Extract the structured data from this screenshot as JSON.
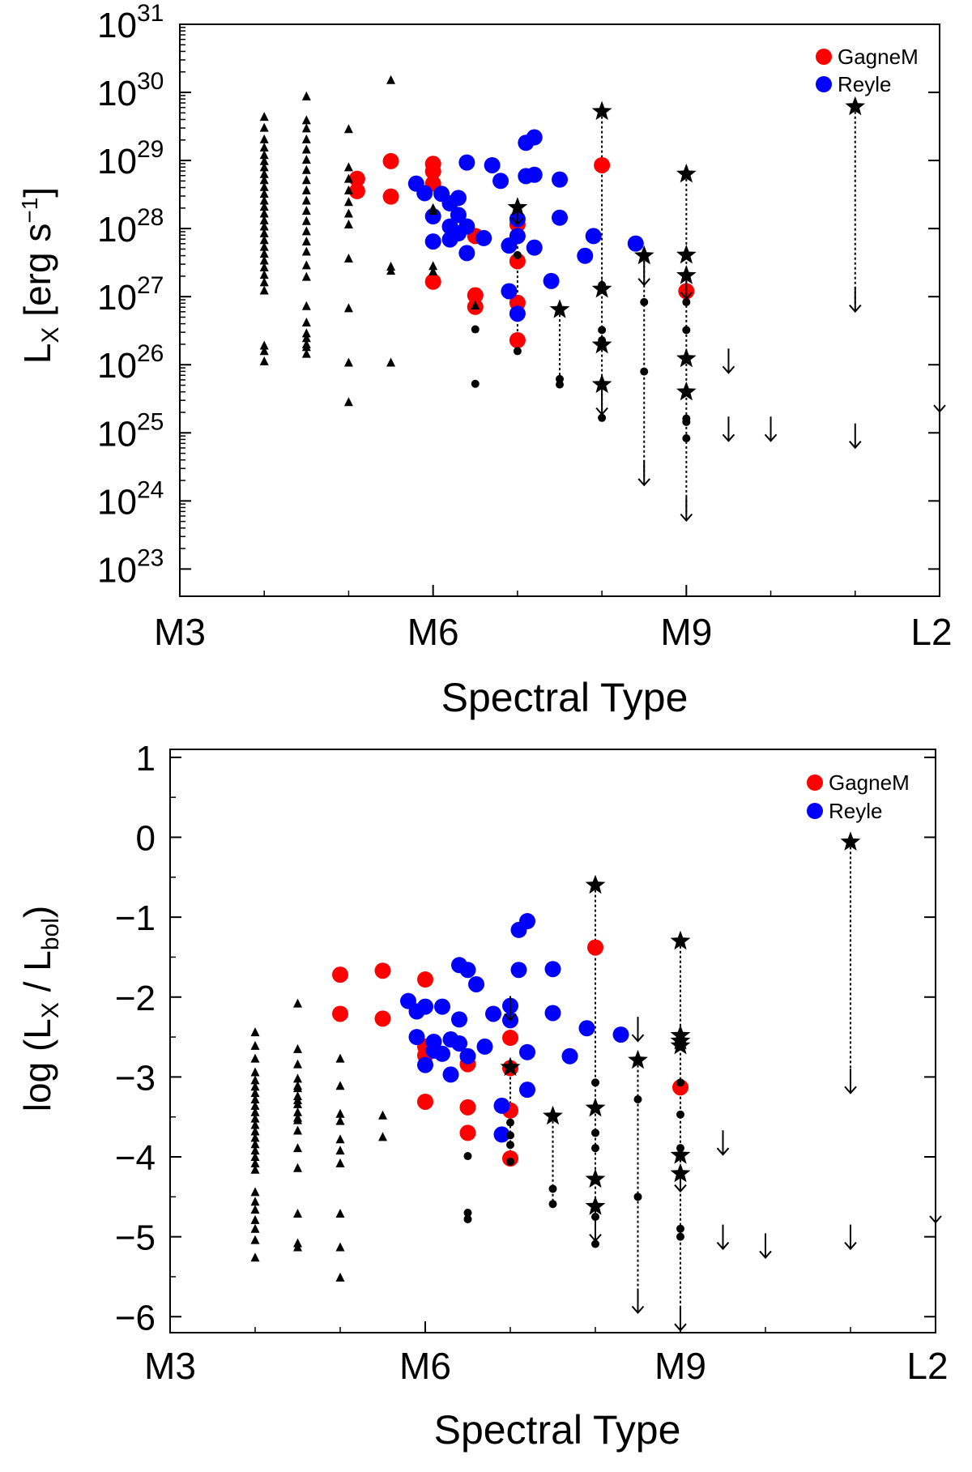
{
  "charts": [
    {
      "type": "scatter",
      "xlabel": "Spectral Type",
      "ylabel_main": "L",
      "ylabel_sub": "X",
      "ylabel_unit_pre": "[erg s",
      "ylabel_unit_exp": "−1",
      "ylabel_unit_post": "]",
      "xticks": [
        "M3",
        "M6",
        "M9",
        "L2"
      ],
      "yticks": [
        {
          "base": "10",
          "exp": "23"
        },
        {
          "base": "10",
          "exp": "24"
        },
        {
          "base": "10",
          "exp": "25"
        },
        {
          "base": "10",
          "exp": "26"
        },
        {
          "base": "10",
          "exp": "27"
        },
        {
          "base": "10",
          "exp": "28"
        },
        {
          "base": "10",
          "exp": "29"
        },
        {
          "base": "10",
          "exp": "30"
        },
        {
          "base": "10",
          "exp": "31"
        }
      ],
      "legend": [
        {
          "label": "GagneM",
          "color": "#ff0000"
        },
        {
          "label": "Reyle",
          "color": "#0000ff"
        }
      ]
    },
    {
      "type": "scatter",
      "xlabel": "Spectral Type",
      "ylabel_pre": "log (L",
      "ylabel_sub1": "X",
      "ylabel_mid": " / L",
      "ylabel_sub2": "bol",
      "ylabel_post": ")",
      "xticks": [
        "M3",
        "M6",
        "M9",
        "L2"
      ],
      "yticks": [
        "1",
        "0",
        "−1",
        "−2",
        "−3",
        "−4",
        "−5",
        "−6"
      ],
      "legend": [
        {
          "label": "GagneM",
          "color": "#ff0000"
        },
        {
          "label": "Reyle",
          "color": "#0000ff"
        }
      ]
    }
  ],
  "chart_data": [
    {
      "type": "scatter",
      "title": "",
      "xlabel": "Spectral Type",
      "ylabel": "L_X [erg s^-1]",
      "x_scale": "spectral type (M0=0 ... M9=9, L0=10, L2=12)",
      "y_scale": "log",
      "xlim": [
        3,
        12
      ],
      "ylim_log10": [
        22.6,
        31
      ],
      "grid": false,
      "legend_position": "top-right",
      "series": [
        {
          "name": "GagneM",
          "marker": "circle",
          "color": "#ff0000",
          "x": [
            5.1,
            5.1,
            5.5,
            5.5,
            6.0,
            6.0,
            6.0,
            6.0,
            6.5,
            6.5,
            6.5,
            7.0,
            7.0,
            7.0,
            7.0,
            8.0,
            9.0
          ],
          "log10_y": [
            28.73,
            28.55,
            28.47,
            28.99,
            28.95,
            28.84,
            28.66,
            27.22,
            27.89,
            27.02,
            26.85,
            28.06,
            27.52,
            26.91,
            26.36,
            28.93,
            27.08
          ]
        },
        {
          "name": "Reyle",
          "marker": "circle",
          "color": "#0000ff",
          "x": [
            5.8,
            5.9,
            6.0,
            6.0,
            6.1,
            6.2,
            6.2,
            6.2,
            6.3,
            6.3,
            6.3,
            6.4,
            6.4,
            6.4,
            6.6,
            6.7,
            6.8,
            6.9,
            6.9,
            7.0,
            7.0,
            7.0,
            7.1,
            7.1,
            7.2,
            7.2,
            7.2,
            7.4,
            7.5,
            7.5,
            7.8,
            7.9,
            8.4
          ],
          "log10_y": [
            28.66,
            28.52,
            28.18,
            27.81,
            28.51,
            28.37,
            28.03,
            27.84,
            28.45,
            28.2,
            27.93,
            28.97,
            28.03,
            27.64,
            27.86,
            28.93,
            28.7,
            27.75,
            27.08,
            28.14,
            27.89,
            26.75,
            29.26,
            28.77,
            29.34,
            28.79,
            27.72,
            27.23,
            28.72,
            28.16,
            27.6,
            27.89,
            27.78
          ]
        },
        {
          "name": "",
          "marker": "triangle",
          "color": "#000000",
          "x": [
            4.0,
            4.0,
            4.0,
            4.0,
            4.0,
            4.0,
            4.0,
            4.0,
            4.0,
            4.0,
            4.0,
            4.0,
            4.0,
            4.0,
            4.0,
            4.0,
            4.0,
            4.0,
            4.0,
            4.0,
            4.0,
            4.0,
            4.0,
            4.0,
            4.0,
            4.0,
            4.0,
            4.0,
            4.5,
            4.5,
            4.5,
            4.5,
            4.5,
            4.5,
            4.5,
            4.5,
            4.5,
            4.5,
            4.5,
            4.5,
            4.5,
            4.5,
            4.5,
            4.5,
            4.5,
            4.5,
            4.5,
            4.5,
            4.5,
            4.5,
            4.5,
            4.5,
            5.0,
            5.0,
            5.0,
            5.0,
            5.0,
            5.0,
            5.0,
            5.0,
            5.0,
            5.0,
            5.0,
            5.5,
            5.5,
            5.5,
            5.5,
            6.0,
            6.0,
            6.0,
            6.0,
            6.5
          ],
          "log10_y": [
            29.63,
            29.47,
            29.3,
            29.18,
            29.07,
            28.98,
            28.89,
            28.79,
            28.7,
            28.6,
            28.5,
            28.4,
            28.31,
            28.21,
            28.11,
            28.02,
            27.92,
            27.82,
            27.72,
            27.62,
            27.52,
            27.42,
            27.31,
            27.2,
            27.08,
            26.27,
            26.19,
            26.04,
            29.93,
            29.58,
            29.46,
            29.3,
            29.15,
            29.0,
            28.85,
            28.7,
            28.55,
            28.4,
            28.25,
            28.1,
            27.95,
            27.8,
            27.65,
            27.45,
            27.28,
            26.85,
            26.61,
            26.45,
            26.38,
            26.25,
            26.15,
            26.29,
            29.45,
            28.89,
            28.72,
            28.55,
            28.38,
            28.21,
            28.05,
            27.55,
            26.82,
            26.02,
            25.44,
            30.17,
            27.37,
            27.43,
            26.02,
            28.25,
            27.44,
            27.36,
            28.29,
            26.86
          ]
        },
        {
          "name": "",
          "marker": "dot",
          "color": "#000000",
          "x": [
            6.5,
            6.5,
            7.0,
            7.0,
            7.5,
            7.5,
            8.0,
            8.0,
            8.0,
            8.0,
            8.0,
            8.5,
            8.5,
            9.0,
            9.0,
            9.0,
            9.0,
            9.0
          ],
          "log10_y": [
            26.52,
            25.72,
            27.61,
            26.2,
            25.79,
            25.71,
            27.17,
            26.51,
            26.36,
            25.71,
            25.22,
            26.92,
            25.9,
            26.92,
            26.51,
            25.21,
            25.16,
            24.92
          ]
        },
        {
          "name": "",
          "marker": "star",
          "color": "#000000",
          "x": [
            7.0,
            7.5,
            8.0,
            8.0,
            8.0,
            8.0,
            8.5,
            9.0,
            9.0,
            9.0,
            9.0,
            9.0,
            11.0
          ],
          "log10_y": [
            28.31,
            26.81,
            29.72,
            27.11,
            26.29,
            25.71,
            27.6,
            28.8,
            27.61,
            27.31,
            26.09,
            25.6,
            29.79
          ]
        },
        {
          "name": "",
          "marker": "upper-limit-arrow",
          "color": "#000000",
          "x": [
            7.0,
            8.0,
            8.5,
            8.5,
            9.0,
            9.0,
            9.5,
            9.5,
            10.0,
            11.0,
            11.0,
            12.0
          ],
          "log10_y": [
            28.18,
            25.39,
            27.29,
            24.35,
            27.09,
            23.83,
            26.0,
            25.0,
            25.0,
            26.9,
            24.9,
            25.43
          ]
        }
      ],
      "connectors": [
        {
          "x": 7.0,
          "log10_y_range": [
            28.31,
            26.2
          ]
        },
        {
          "x": 7.5,
          "log10_y_range": [
            26.81,
            25.71
          ]
        },
        {
          "x": 8.0,
          "log10_y_range": [
            29.72,
            25.22
          ]
        },
        {
          "x": 8.5,
          "log10_y_range": [
            27.6,
            24.35
          ]
        },
        {
          "x": 9.0,
          "log10_y_range": [
            28.8,
            23.83
          ]
        },
        {
          "x": 11.0,
          "log10_y_range": [
            29.79,
            26.9
          ]
        }
      ]
    },
    {
      "type": "scatter",
      "title": "",
      "xlabel": "Spectral Type",
      "ylabel": "log (L_X / L_bol)",
      "x_scale": "spectral type (M0=0 ... M9=9, L0=10, L2=12)",
      "xlim": [
        3,
        12
      ],
      "ylim": [
        -6.2,
        1.1
      ],
      "grid": false,
      "legend_position": "top-right",
      "series": [
        {
          "name": "GagneM",
          "marker": "circle",
          "color": "#ff0000",
          "x": [
            5.0,
            5.0,
            5.5,
            5.5,
            6.0,
            6.0,
            6.0,
            6.0,
            6.5,
            6.5,
            6.5,
            7.0,
            7.0,
            7.0,
            7.0,
            8.0,
            9.0
          ],
          "log10_y": [
            -1.72,
            -2.21,
            -1.67,
            -2.27,
            -1.78,
            -2.62,
            -2.73,
            -3.31,
            -2.84,
            -3.38,
            -3.7,
            -2.51,
            -2.89,
            -3.42,
            -4.02,
            -1.38,
            -3.13
          ]
        },
        {
          "name": "Reyle",
          "marker": "circle",
          "color": "#0000ff",
          "x": [
            5.8,
            5.9,
            5.9,
            6.0,
            6.0,
            6.1,
            6.1,
            6.2,
            6.2,
            6.3,
            6.3,
            6.4,
            6.4,
            6.4,
            6.5,
            6.5,
            6.6,
            6.7,
            6.8,
            6.9,
            6.9,
            7.0,
            7.0,
            7.1,
            7.1,
            7.2,
            7.2,
            7.2,
            7.5,
            7.5,
            7.7,
            7.9,
            8.3
          ],
          "log10_y": [
            -2.05,
            -2.18,
            -2.5,
            -2.12,
            -2.85,
            -2.56,
            -2.67,
            -2.12,
            -2.71,
            -2.53,
            -2.97,
            -1.6,
            -2.28,
            -2.58,
            -1.66,
            -2.74,
            -1.84,
            -2.62,
            -2.21,
            -3.36,
            -3.72,
            -2.11,
            -2.29,
            -1.16,
            -1.66,
            -1.05,
            -2.69,
            -3.16,
            -1.65,
            -2.2,
            -2.74,
            -2.39,
            -2.47
          ]
        },
        {
          "name": "",
          "marker": "triangle",
          "color": "#000000",
          "x": [
            4.0,
            4.0,
            4.0,
            4.0,
            4.0,
            4.0,
            4.0,
            4.0,
            4.0,
            4.0,
            4.0,
            4.0,
            4.0,
            4.0,
            4.0,
            4.0,
            4.0,
            4.0,
            4.0,
            4.0,
            4.0,
            4.0,
            4.0,
            4.0,
            4.0,
            4.0,
            4.5,
            4.5,
            4.5,
            4.5,
            4.5,
            4.5,
            4.5,
            4.5,
            4.5,
            4.5,
            4.5,
            4.5,
            4.5,
            4.5,
            4.5,
            4.5,
            4.5,
            4.5,
            5.0,
            5.0,
            5.0,
            5.0,
            5.0,
            5.0,
            5.0,
            5.0,
            5.0,
            5.0,
            5.5,
            5.5,
            5.5,
            5.5,
            6.0,
            6.0
          ],
          "log10_y": [
            -2.45,
            -2.62,
            -2.78,
            -2.95,
            -3.05,
            -3.13,
            -3.21,
            -3.29,
            -3.37,
            -3.45,
            -3.53,
            -3.61,
            -3.69,
            -3.77,
            -3.85,
            -3.93,
            -4.01,
            -4.09,
            -4.17,
            -4.45,
            -4.57,
            -4.67,
            -4.8,
            -4.91,
            -5.05,
            -5.27,
            -2.09,
            -2.85,
            -3.03,
            -3.15,
            -3.25,
            -3.35,
            -3.45,
            -3.55,
            -3.68,
            -3.9,
            -4.15,
            -4.72,
            -5.09,
            -5.14,
            -2.66,
            -3.12,
            -3.3,
            -3.52,
            -3.79,
            -3.93,
            -4.09,
            -5.14,
            -5.52,
            -3.12,
            -2.78,
            -3.47,
            -3.56,
            -4.72,
            -3.49,
            -3.76
          ]
        },
        {
          "name": "",
          "marker": "dot",
          "color": "#000000",
          "x": [
            6.5,
            6.5,
            6.5,
            7.0,
            7.0,
            7.0,
            7.0,
            7.5,
            7.5,
            8.0,
            8.0,
            8.0,
            8.0,
            8.0,
            8.5,
            8.5,
            9.0,
            9.0,
            9.0,
            9.0,
            9.0
          ],
          "log10_y": [
            -3.99,
            -4.7,
            -4.78,
            -3.57,
            -3.73,
            -3.85,
            -4.06,
            -4.4,
            -4.59,
            -3.07,
            -3.7,
            -3.89,
            -4.75,
            -5.09,
            -3.28,
            -4.5,
            -3.07,
            -3.47,
            -3.89,
            -4.9,
            -5.0
          ]
        },
        {
          "name": "",
          "marker": "star",
          "color": "#000000",
          "x": [
            7.0,
            7.5,
            8.0,
            8.0,
            8.0,
            8.0,
            8.5,
            9.0,
            9.0,
            9.0,
            9.0,
            9.0,
            9.0,
            11.0
          ],
          "log10_y": [
            -2.88,
            -3.49,
            -0.6,
            -3.39,
            -4.28,
            -4.62,
            -2.79,
            -1.3,
            -2.48,
            -2.55,
            -2.61,
            -3.98,
            -4.21,
            -0.06
          ]
        },
        {
          "name": "",
          "marker": "upper-limit-arrow",
          "color": "#000000",
          "x": [
            7.0,
            8.0,
            8.5,
            8.5,
            9.0,
            9.0,
            9.5,
            9.5,
            10.0,
            11.0,
            11.0,
            12.0
          ],
          "log10_y": [
            -2.19,
            -4.95,
            -2.45,
            -5.85,
            -4.33,
            -6.07,
            -3.87,
            -5.05,
            -5.16,
            -3.1,
            -5.05,
            -4.72
          ]
        }
      ],
      "connectors": [
        {
          "x": 7.0,
          "y_range": [
            -2.88,
            -4.06
          ]
        },
        {
          "x": 7.5,
          "y_range": [
            -3.49,
            -4.59
          ]
        },
        {
          "x": 8.0,
          "y_range": [
            -0.6,
            -5.09
          ]
        },
        {
          "x": 8.5,
          "y_range": [
            -2.79,
            -5.85
          ]
        },
        {
          "x": 9.0,
          "y_range": [
            -1.3,
            -6.07
          ]
        },
        {
          "x": 11.0,
          "y_range": [
            -0.06,
            -3.1
          ]
        }
      ]
    }
  ]
}
